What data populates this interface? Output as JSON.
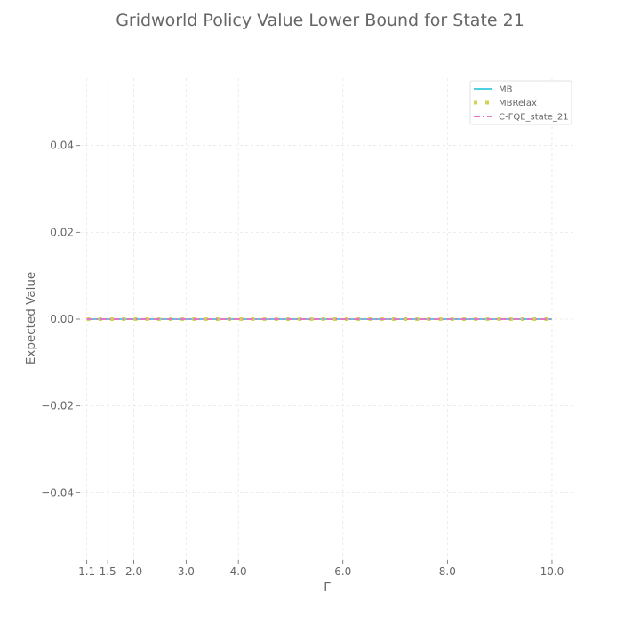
{
  "chart_data": {
    "type": "line",
    "title": "Gridworld Policy Value Lower Bound for State 21",
    "xlabel": "Γ",
    "ylabel": "Expected Value",
    "xlim": [
      0.97,
      10.46
    ],
    "ylim": [
      -0.0555,
      0.0555
    ],
    "x_ticks": [
      1.1,
      1.5,
      2.0,
      3.0,
      4.0,
      6.0,
      8.0,
      10.0
    ],
    "x_tick_labels": [
      "1.1",
      "1.5",
      "2.0",
      "3.0",
      "4.0",
      "6.0",
      "8.0",
      "10.0"
    ],
    "y_ticks": [
      -0.04,
      -0.02,
      0.0,
      0.02,
      0.04
    ],
    "y_tick_labels": [
      "−0.04",
      "−0.02",
      "0.00",
      "0.02",
      "0.04"
    ],
    "grid": true,
    "legend_position": "top-right",
    "x": [
      1.1,
      1.5,
      2.0,
      3.0,
      4.0,
      6.0,
      8.0,
      10.0
    ],
    "series": [
      {
        "name": "MB",
        "style": "solid",
        "color": "#4dd0e1",
        "values": [
          0,
          0,
          0,
          0,
          0,
          0,
          0,
          0
        ]
      },
      {
        "name": "MBRelax",
        "style": "dotted",
        "color": "#d4d157",
        "values": [
          0,
          0,
          0,
          0,
          0,
          0,
          0,
          0
        ]
      },
      {
        "name": "C-FQE_state_21",
        "style": "dashdot",
        "color": "#e377c2",
        "values": [
          0,
          0,
          0,
          0,
          0,
          0,
          0,
          0
        ]
      }
    ]
  }
}
